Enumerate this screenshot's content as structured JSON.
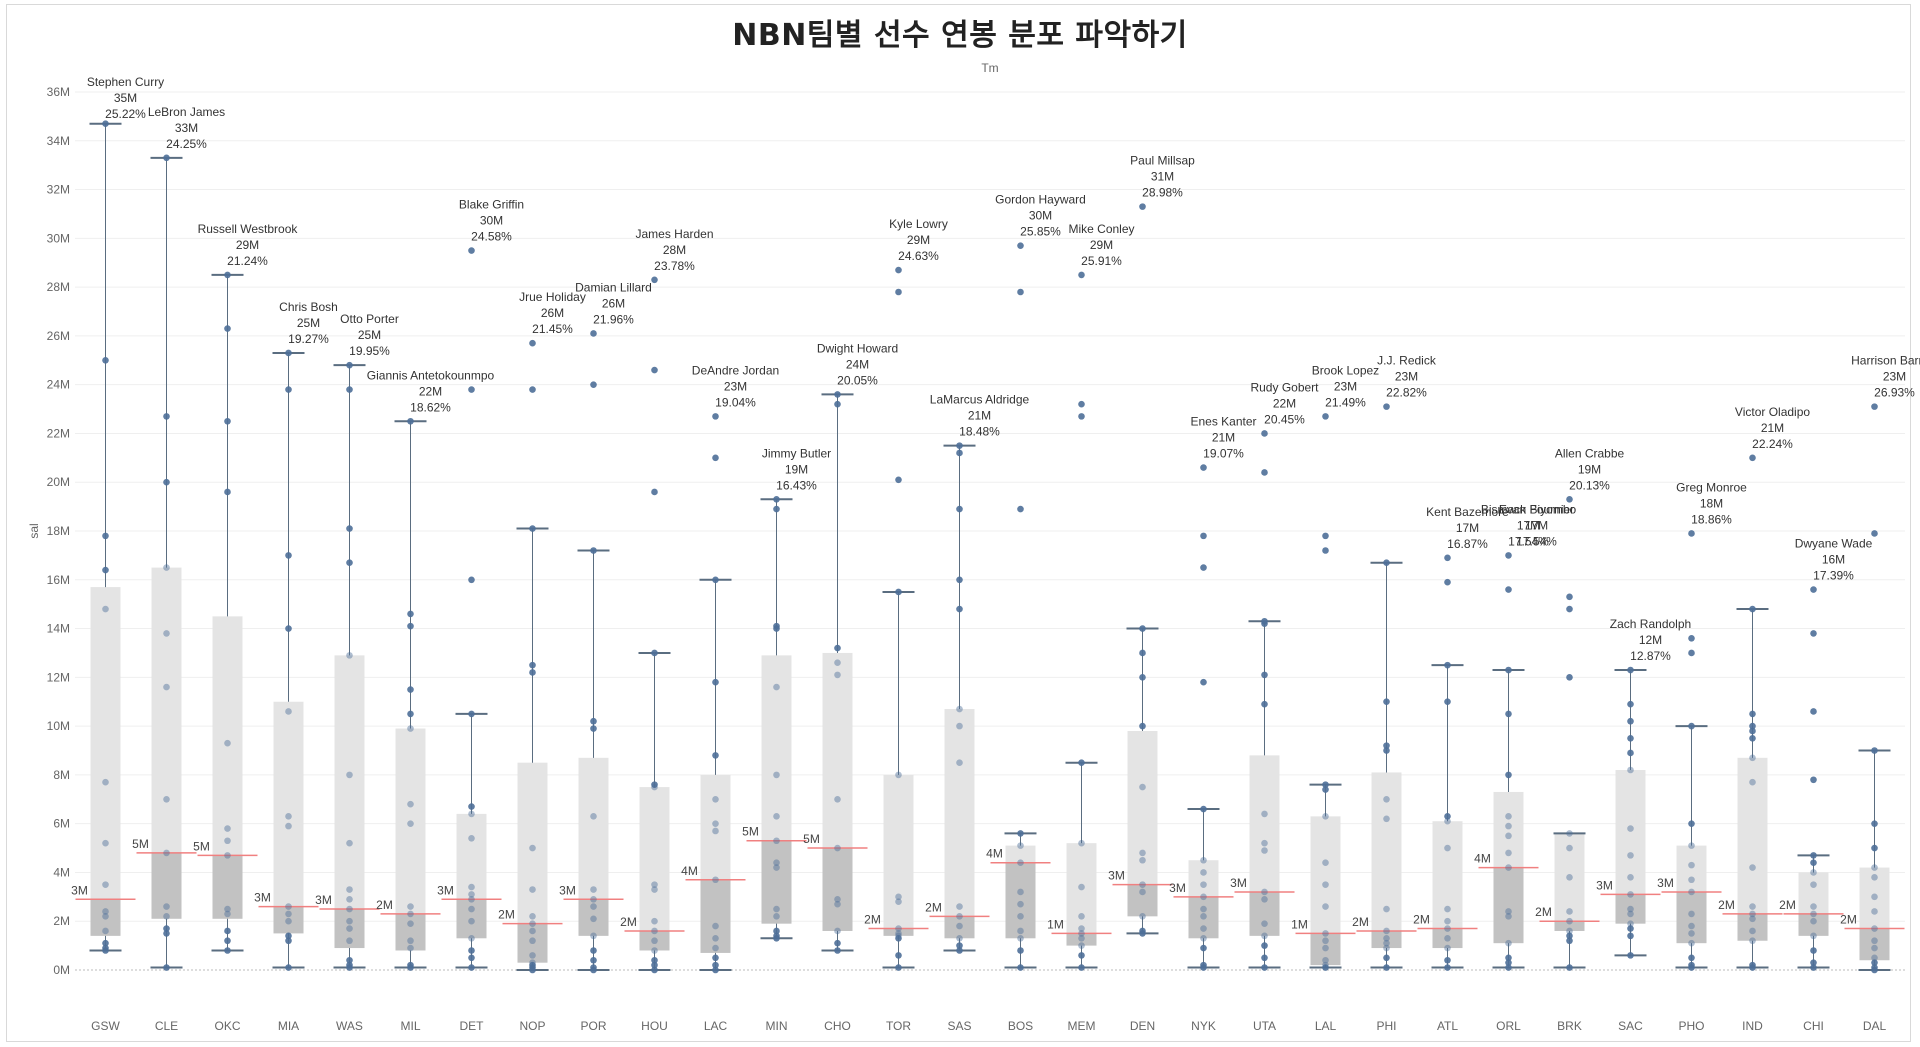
{
  "chart_data": {
    "type": "box",
    "title": "NBN팀별 선수 연봉 분포 파악하기",
    "header_label": "Tm",
    "ylabel": "sal",
    "ylim": [
      0,
      36
    ],
    "yticks": [
      "0M",
      "2M",
      "4M",
      "6M",
      "8M",
      "10M",
      "12M",
      "14M",
      "16M",
      "18M",
      "20M",
      "22M",
      "24M",
      "26M",
      "28M",
      "30M",
      "32M",
      "34M",
      "36M"
    ],
    "grid": true,
    "colors": {
      "box_upper": "#e4e4e4",
      "box_lower": "#c2c2c2",
      "dot": "#4e6f98",
      "whisker": "#5a6d80",
      "median": "#f08080"
    },
    "teams": [
      {
        "tm": "GSW",
        "q1": 1.4,
        "med": 2.9,
        "q3": 15.7,
        "wlo": 0.8,
        "whi": 34.7,
        "med_label": "3M",
        "points": [
          34.7,
          25.0,
          17.8,
          16.4,
          14.8,
          7.7,
          5.2,
          3.5,
          2.4,
          2.2,
          1.6,
          1.1,
          0.9,
          0.8
        ]
      },
      {
        "tm": "CLE",
        "q1": 2.1,
        "med": 4.8,
        "q3": 16.5,
        "wlo": 0.1,
        "whi": 33.3,
        "med_label": "5M",
        "points": [
          33.3,
          22.7,
          20.0,
          16.5,
          13.8,
          11.6,
          7.0,
          4.8,
          2.6,
          2.2,
          1.7,
          1.5,
          0.1
        ]
      },
      {
        "tm": "OKC",
        "q1": 2.1,
        "med": 4.7,
        "q3": 14.5,
        "wlo": 0.8,
        "whi": 28.5,
        "med_label": "5M",
        "points": [
          28.5,
          26.3,
          22.5,
          19.6,
          9.3,
          5.8,
          5.3,
          4.7,
          2.5,
          2.3,
          1.6,
          1.2,
          0.8
        ]
      },
      {
        "tm": "MIA",
        "q1": 1.5,
        "med": 2.6,
        "q3": 11.0,
        "wlo": 0.1,
        "whi": 25.3,
        "med_label": "3M",
        "points": [
          25.3,
          23.8,
          17.0,
          14.0,
          10.6,
          6.3,
          5.9,
          2.6,
          2.3,
          2.0,
          1.4,
          1.2,
          0.1
        ]
      },
      {
        "tm": "WAS",
        "q1": 0.9,
        "med": 2.5,
        "q3": 12.9,
        "wlo": 0.1,
        "whi": 24.8,
        "med_label": "3M",
        "points": [
          24.8,
          23.8,
          18.1,
          16.7,
          12.9,
          8.0,
          5.2,
          3.3,
          2.9,
          2.5,
          2.0,
          1.7,
          1.2,
          0.4,
          0.2,
          0.1
        ]
      },
      {
        "tm": "MIL",
        "q1": 0.8,
        "med": 2.3,
        "q3": 9.9,
        "wlo": 0.1,
        "whi": 22.5,
        "med_label": "2M",
        "points": [
          22.5,
          14.6,
          14.1,
          11.5,
          10.5,
          9.9,
          6.8,
          6.0,
          2.6,
          2.3,
          1.9,
          1.2,
          0.9,
          0.2,
          0.1
        ]
      },
      {
        "tm": "DET",
        "q1": 1.3,
        "med": 2.9,
        "q3": 6.4,
        "wlo": 0.1,
        "whi": 10.5,
        "med_label": "3M",
        "points": [
          29.5,
          23.8,
          16.0,
          10.5,
          6.7,
          6.4,
          5.4,
          3.4,
          3.1,
          2.9,
          2.5,
          2.0,
          1.3,
          0.8,
          0.5,
          0.1
        ]
      },
      {
        "tm": "NOP",
        "q1": 0.3,
        "med": 1.9,
        "q3": 8.5,
        "wlo": 0.0,
        "whi": 18.1,
        "med_label": "2M",
        "points": [
          25.7,
          23.8,
          18.1,
          12.5,
          12.2,
          5.0,
          3.3,
          2.2,
          1.9,
          1.6,
          1.2,
          0.6,
          0.3,
          0.2,
          0.1,
          0.0
        ]
      },
      {
        "tm": "POR",
        "q1": 1.4,
        "med": 2.9,
        "q3": 8.7,
        "wlo": 0.0,
        "whi": 17.2,
        "med_label": "3M",
        "points": [
          26.1,
          24.0,
          17.2,
          10.2,
          9.9,
          6.3,
          3.3,
          2.9,
          2.6,
          2.1,
          1.4,
          0.8,
          0.4,
          0.1,
          0.0
        ]
      },
      {
        "tm": "HOU",
        "q1": 0.8,
        "med": 1.6,
        "q3": 7.5,
        "wlo": 0.0,
        "whi": 13.0,
        "med_label": "2M",
        "points": [
          28.3,
          24.6,
          19.6,
          13.0,
          7.6,
          7.5,
          3.5,
          3.3,
          2.0,
          1.6,
          1.2,
          0.8,
          0.4,
          0.2,
          0.0
        ]
      },
      {
        "tm": "LAC",
        "q1": 0.7,
        "med": 3.7,
        "q3": 8.0,
        "wlo": 0.0,
        "whi": 16.0,
        "med_label": "4M",
        "points": [
          22.7,
          21.0,
          16.0,
          11.8,
          8.8,
          7.0,
          6.0,
          5.7,
          3.7,
          1.8,
          1.3,
          0.9,
          0.5,
          0.2,
          0.0
        ]
      },
      {
        "tm": "MIN",
        "q1": 1.9,
        "med": 5.3,
        "q3": 12.9,
        "wlo": 1.3,
        "whi": 19.3,
        "med_label": "5M",
        "points": [
          19.3,
          18.9,
          14.1,
          14.0,
          11.6,
          8.0,
          6.3,
          5.3,
          4.4,
          4.2,
          2.5,
          2.2,
          1.6,
          1.4,
          1.3
        ]
      },
      {
        "tm": "CHO",
        "q1": 1.6,
        "med": 5.0,
        "q3": 13.0,
        "wlo": 0.8,
        "whi": 23.6,
        "med_label": "5M",
        "points": [
          23.6,
          23.2,
          13.2,
          12.6,
          12.1,
          7.0,
          5.0,
          2.9,
          2.7,
          1.6,
          1.1,
          0.8
        ]
      },
      {
        "tm": "TOR",
        "q1": 1.4,
        "med": 1.7,
        "q3": 8.0,
        "wlo": 0.1,
        "whi": 15.5,
        "med_label": "2M",
        "points": [
          28.7,
          27.8,
          20.1,
          15.5,
          8.0,
          3.0,
          2.8,
          1.7,
          1.5,
          1.4,
          1.3,
          0.6,
          0.1
        ]
      },
      {
        "tm": "SAS",
        "q1": 1.3,
        "med": 2.2,
        "q3": 10.7,
        "wlo": 0.8,
        "whi": 21.5,
        "med_label": "2M",
        "points": [
          21.5,
          21.2,
          18.9,
          16.0,
          14.8,
          10.7,
          10.0,
          8.5,
          2.6,
          2.2,
          1.8,
          1.3,
          1.0,
          0.8
        ]
      },
      {
        "tm": "BOS",
        "q1": 1.3,
        "med": 4.4,
        "q3": 5.1,
        "wlo": 0.1,
        "whi": 5.6,
        "med_label": "4M",
        "points": [
          29.7,
          27.8,
          18.9,
          5.6,
          5.1,
          4.4,
          3.2,
          2.7,
          2.2,
          1.6,
          1.3,
          0.8,
          0.1
        ]
      },
      {
        "tm": "MEM",
        "q1": 1.0,
        "med": 1.5,
        "q3": 5.2,
        "wlo": 0.1,
        "whi": 8.5,
        "med_label": "1M",
        "points": [
          28.5,
          23.2,
          22.7,
          8.5,
          5.2,
          3.4,
          2.2,
          1.7,
          1.5,
          1.3,
          1.0,
          0.6,
          0.1
        ]
      },
      {
        "tm": "DEN",
        "q1": 2.2,
        "med": 3.5,
        "q3": 9.8,
        "wlo": 1.5,
        "whi": 14.0,
        "med_label": "3M",
        "points": [
          31.3,
          14.0,
          13.0,
          12.0,
          10.0,
          7.5,
          4.8,
          4.5,
          3.5,
          3.2,
          2.2,
          1.6,
          1.5
        ]
      },
      {
        "tm": "NYK",
        "q1": 1.3,
        "med": 3.0,
        "q3": 4.5,
        "wlo": 0.1,
        "whi": 6.6,
        "med_label": "3M",
        "points": [
          20.6,
          17.8,
          16.5,
          11.8,
          6.6,
          4.5,
          4.0,
          3.5,
          3.0,
          2.5,
          2.2,
          1.7,
          1.3,
          0.9,
          0.2,
          0.1
        ]
      },
      {
        "tm": "UTA",
        "q1": 1.4,
        "med": 3.2,
        "q3": 8.8,
        "wlo": 0.1,
        "whi": 14.3,
        "med_label": "3M",
        "points": [
          22.0,
          20.4,
          14.3,
          14.2,
          12.1,
          10.9,
          6.4,
          5.2,
          4.9,
          3.2,
          2.9,
          1.9,
          1.4,
          1.0,
          0.5,
          0.1
        ]
      },
      {
        "tm": "LAL",
        "q1": 0.2,
        "med": 1.5,
        "q3": 6.3,
        "wlo": 0.1,
        "whi": 7.6,
        "med_label": "1M",
        "points": [
          22.7,
          17.8,
          17.2,
          7.6,
          7.4,
          6.3,
          4.4,
          3.5,
          2.6,
          1.5,
          1.2,
          0.9,
          0.4,
          0.2,
          0.1
        ]
      },
      {
        "tm": "PHI",
        "q1": 0.9,
        "med": 1.6,
        "q3": 8.1,
        "wlo": 0.1,
        "whi": 16.7,
        "med_label": "2M",
        "points": [
          23.1,
          16.7,
          11.0,
          9.2,
          9.0,
          7.0,
          6.2,
          2.5,
          1.6,
          1.3,
          1.1,
          0.9,
          0.5,
          0.1
        ]
      },
      {
        "tm": "ATL",
        "q1": 0.9,
        "med": 1.7,
        "q3": 6.1,
        "wlo": 0.1,
        "whi": 12.5,
        "med_label": "2M",
        "points": [
          16.9,
          15.9,
          12.5,
          11.0,
          6.3,
          6.1,
          5.0,
          2.5,
          2.0,
          1.7,
          1.3,
          0.9,
          0.4,
          0.1
        ]
      },
      {
        "tm": "ORL",
        "q1": 1.1,
        "med": 4.2,
        "q3": 7.3,
        "wlo": 0.1,
        "whi": 12.3,
        "med_label": "4M",
        "points": [
          17.0,
          15.6,
          12.3,
          10.5,
          8.0,
          6.3,
          5.9,
          5.5,
          4.8,
          4.2,
          2.4,
          2.2,
          1.1,
          0.5,
          0.3,
          0.1
        ]
      },
      {
        "tm": "BRK",
        "q1": 1.6,
        "med": 2.0,
        "q3": 5.6,
        "wlo": 0.1,
        "whi": 5.6,
        "med_label": "2M",
        "points": [
          19.3,
          15.3,
          14.8,
          12.0,
          5.6,
          5.0,
          3.8,
          2.4,
          2.0,
          1.6,
          1.4,
          1.2,
          0.1
        ]
      },
      {
        "tm": "SAC",
        "q1": 1.9,
        "med": 3.1,
        "q3": 8.2,
        "wlo": 0.6,
        "whi": 12.3,
        "med_label": "3M",
        "points": [
          12.3,
          10.9,
          10.2,
          9.5,
          8.9,
          8.2,
          5.8,
          4.7,
          3.8,
          3.1,
          2.5,
          2.3,
          1.9,
          1.7,
          1.4,
          0.6
        ]
      },
      {
        "tm": "PHO",
        "q1": 1.1,
        "med": 3.2,
        "q3": 5.1,
        "wlo": 0.1,
        "whi": 10.0,
        "med_label": "3M",
        "points": [
          17.9,
          13.6,
          13.0,
          10.0,
          6.0,
          5.1,
          4.3,
          3.7,
          3.2,
          2.3,
          1.8,
          1.5,
          1.1,
          0.5,
          0.2,
          0.1
        ]
      },
      {
        "tm": "IND",
        "q1": 1.2,
        "med": 2.3,
        "q3": 8.7,
        "wlo": 0.1,
        "whi": 14.8,
        "med_label": "2M",
        "points": [
          21.0,
          14.8,
          10.5,
          10.0,
          9.8,
          9.5,
          8.7,
          7.7,
          4.2,
          2.6,
          2.3,
          2.1,
          1.6,
          1.2,
          0.2,
          0.1
        ]
      },
      {
        "tm": "CHI",
        "q1": 1.4,
        "med": 2.3,
        "q3": 4.0,
        "wlo": 0.1,
        "whi": 4.7,
        "med_label": "2M",
        "points": [
          15.6,
          13.8,
          10.6,
          7.8,
          4.7,
          4.4,
          4.0,
          3.5,
          2.6,
          2.3,
          2.0,
          1.4,
          0.8,
          0.3,
          0.1
        ]
      },
      {
        "tm": "DAL",
        "q1": 0.4,
        "med": 1.7,
        "q3": 4.2,
        "wlo": 0.0,
        "whi": 9.0,
        "med_label": "2M",
        "points": [
          23.1,
          17.9,
          9.0,
          6.0,
          5.0,
          4.2,
          3.8,
          3.0,
          2.4,
          1.7,
          1.2,
          0.9,
          0.5,
          0.3,
          0.1,
          0.0
        ]
      }
    ],
    "annotations": [
      {
        "team": "GSW",
        "name": "Stephen Curry",
        "sal": "35M",
        "pct": "25.22%",
        "value": 34.7
      },
      {
        "team": "CLE",
        "name": "LeBron James",
        "sal": "33M",
        "pct": "24.25%",
        "value": 33.3
      },
      {
        "team": "OKC",
        "name": "Russell Westbrook",
        "sal": "29M",
        "pct": "21.24%",
        "value": 28.5
      },
      {
        "team": "MIA",
        "name": "Chris Bosh",
        "sal": "25M",
        "pct": "19.27%",
        "value": 25.3
      },
      {
        "team": "WAS",
        "name": "Otto Porter",
        "sal": "25M",
        "pct": "19.95%",
        "value": 24.8
      },
      {
        "team": "MIL",
        "name": "Giannis Antetokounmpo",
        "sal": "22M",
        "pct": "18.62%",
        "value": 22.5
      },
      {
        "team": "DET",
        "name": "Blake Griffin",
        "sal": "30M",
        "pct": "24.58%",
        "value": 29.5
      },
      {
        "team": "NOP",
        "name": "Jrue Holiday",
        "sal": "26M",
        "pct": "21.45%",
        "value": 25.7
      },
      {
        "team": "POR",
        "name": "Damian Lillard",
        "sal": "26M",
        "pct": "21.96%",
        "value": 26.1
      },
      {
        "team": "HOU",
        "name": "James Harden",
        "sal": "28M",
        "pct": "23.78%",
        "value": 28.3
      },
      {
        "team": "LAC",
        "name": "DeAndre Jordan",
        "sal": "23M",
        "pct": "19.04%",
        "value": 22.7
      },
      {
        "team": "MIN",
        "name": "Jimmy Butler",
        "sal": "19M",
        "pct": "16.43%",
        "value": 19.3
      },
      {
        "team": "CHO",
        "name": "Dwight Howard",
        "sal": "24M",
        "pct": "20.05%",
        "value": 23.6
      },
      {
        "team": "TOR",
        "name": "Kyle Lowry",
        "sal": "29M",
        "pct": "24.63%",
        "value": 28.7
      },
      {
        "team": "SAS",
        "name": "LaMarcus Aldridge",
        "sal": "21M",
        "pct": "18.48%",
        "value": 21.5
      },
      {
        "team": "BOS",
        "name": "Gordon Hayward",
        "sal": "30M",
        "pct": "25.85%",
        "value": 29.7
      },
      {
        "team": "MEM",
        "name": "Mike Conley",
        "sal": "29M",
        "pct": "25.91%",
        "value": 28.5
      },
      {
        "team": "DEN",
        "name": "Paul Millsap",
        "sal": "31M",
        "pct": "28.98%",
        "value": 31.3
      },
      {
        "team": "NYK",
        "name": "Enes Kanter",
        "sal": "21M",
        "pct": "19.07%",
        "value": 20.6
      },
      {
        "team": "UTA",
        "name": "Rudy Gobert",
        "sal": "22M",
        "pct": "20.45%",
        "value": 22.0
      },
      {
        "team": "LAL",
        "name": "Brook Lopez",
        "sal": "23M",
        "pct": "21.49%",
        "value": 22.7
      },
      {
        "team": "PHI",
        "name": "J.J. Redick",
        "sal": "23M",
        "pct": "22.82%",
        "value": 23.1
      },
      {
        "team": "ATL",
        "name": "Kent Bazemore",
        "sal": "17M",
        "pct": "16.87%",
        "value": 16.9
      },
      {
        "team": "ORL",
        "name": "Bismack Biyombo",
        "sal": "17M",
        "pct": "17.54%",
        "value": 17.0
      },
      {
        "team": "ORL",
        "name": "Evan Fournier",
        "sal": "17M",
        "pct": "17.54%",
        "value": 17.0
      },
      {
        "team": "BRK",
        "name": "Allen Crabbe",
        "sal": "19M",
        "pct": "20.13%",
        "value": 19.3
      },
      {
        "team": "SAC",
        "name": "Zach Randolph",
        "sal": "12M",
        "pct": "12.87%",
        "value": 12.3
      },
      {
        "team": "PHO",
        "name": "Greg Monroe",
        "sal": "18M",
        "pct": "18.86%",
        "value": 17.9
      },
      {
        "team": "IND",
        "name": "Victor Oladipo",
        "sal": "21M",
        "pct": "22.24%",
        "value": 21.0
      },
      {
        "team": "CHI",
        "name": "Dwyane Wade",
        "sal": "16M",
        "pct": "17.39%",
        "value": 15.6
      },
      {
        "team": "DAL",
        "name": "Harrison Barnes",
        "sal": "23M",
        "pct": "26.93%",
        "value": 23.1
      }
    ]
  }
}
